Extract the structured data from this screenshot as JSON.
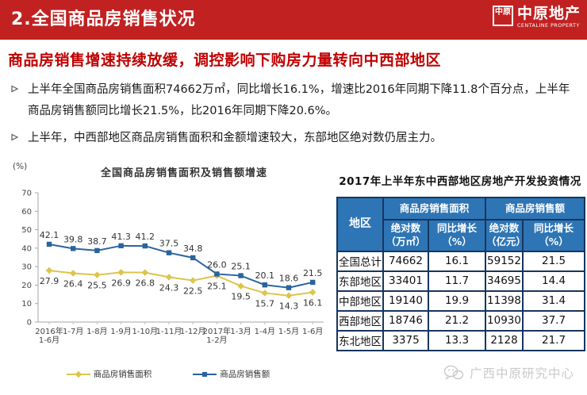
{
  "header": {
    "title": "2.全国商品房销售状况",
    "logo": {
      "mark": "中原",
      "name": "中原地产",
      "tagline": "CENTALINE PROPERTY"
    }
  },
  "subtitle": "商品房销售增速持续放缓，调控影响下购房力量转向中西部地区",
  "bullets": [
    "上半年全国商品房销售面积74662万㎡，同比增长16.1%，增速比2016年同期下降11.8个百分点，上半年商品房销售额同比增长21.5%，比2016年同期下降20.6%。",
    "上半年，中西部地区商品房销售面积和金额增速较大，东部地区绝对数仍居主力。"
  ],
  "chart_data": {
    "type": "line",
    "title": "全国商品房销售面积及销售额增速",
    "ylabel": "(%)",
    "xlabel": "",
    "ylim": [
      0,
      70
    ],
    "yticks": [
      0,
      10,
      20,
      30,
      40,
      50,
      60,
      70
    ],
    "grid": false,
    "legend_position": "bottom",
    "categories": [
      "2016年\n1-6月",
      "1-7月",
      "1-8月",
      "1-9月",
      "1-10月",
      "1-11月",
      "1-12月",
      "2017年\n1-2月",
      "1-3月",
      "1-4月",
      "1-5月",
      "1-6月"
    ],
    "series": [
      {
        "name": "商品房销售面积",
        "color": "#ddc44a",
        "marker": "diamond",
        "label_side": "below",
        "values": [
          27.9,
          26.4,
          25.5,
          26.9,
          26.8,
          24.3,
          22.5,
          25.1,
          19.5,
          15.7,
          14.3,
          16.1
        ]
      },
      {
        "name": "商品房销售额",
        "color": "#2a639e",
        "marker": "square",
        "label_side": "above",
        "values": [
          42.1,
          39.8,
          38.7,
          41.3,
          41.2,
          37.5,
          34.8,
          26.0,
          25.1,
          20.1,
          18.6,
          21.5
        ]
      }
    ]
  },
  "table": {
    "title": "2017年上半年东中西部地区房地产开发投资情况",
    "col_region": "地区",
    "groups": [
      "商品房销售面积",
      "商品房销售额"
    ],
    "subheaders": [
      "绝对数\n（万㎡）",
      "同比增长\n（%）",
      "绝对数\n（亿元）",
      "同比增长\n（%）"
    ],
    "rows": [
      {
        "region": "全国总计",
        "values": [
          "74662",
          "16.1",
          "59152",
          "21.5"
        ]
      },
      {
        "region": "东部地区",
        "values": [
          "33401",
          "11.7",
          "34695",
          "14.4"
        ]
      },
      {
        "region": "中部地区",
        "values": [
          "19140",
          "19.9",
          "11398",
          "31.4"
        ]
      },
      {
        "region": "西部地区",
        "values": [
          "18746",
          "21.2",
          "10930",
          "37.7"
        ]
      },
      {
        "region": "东北地区",
        "values": [
          "3375",
          "13.3",
          "2128",
          "21.7"
        ]
      }
    ]
  },
  "footer": {
    "watermark": "广西中原研究中心"
  },
  "colors": {
    "header_red": "#c12121",
    "subtitle_red": "#c00000",
    "table_header_blue": "#2e75b6",
    "table_border_navy": "#17365d",
    "series_area_yellow": "#ddc44a",
    "series_amount_blue": "#2a639e",
    "watermark_gray": "#c9c9c9"
  }
}
